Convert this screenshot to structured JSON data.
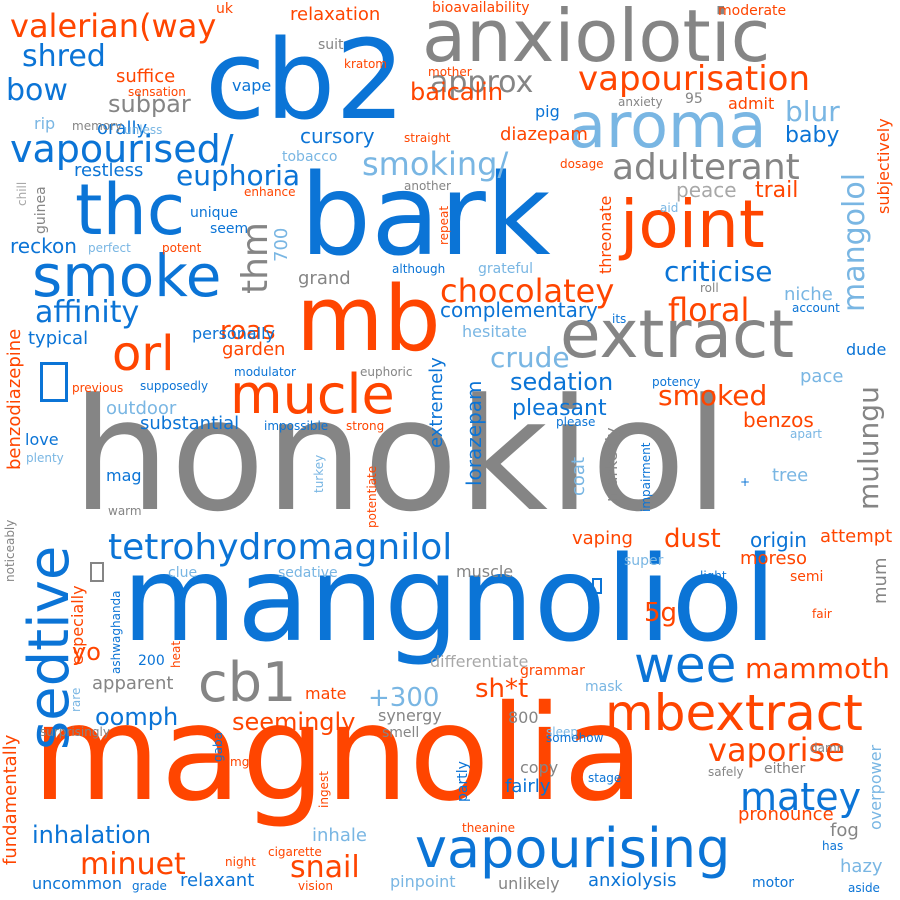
{
  "words": [
    {
      "id": "honokiol",
      "text": "honokiol",
      "color": "#858585"
    },
    {
      "id": "mangnoliol",
      "text": "mangnoliol",
      "color": "#0b74d6"
    },
    {
      "id": "magnolia",
      "text": "magnolia",
      "color": "#ff4500"
    },
    {
      "id": "bark",
      "text": "bark",
      "color": "#0b74d6"
    },
    {
      "id": "cb2",
      "text": "cb2",
      "color": "#0b74d6"
    },
    {
      "id": "anxiolotic",
      "text": "anxiolotic",
      "color": "#858585"
    },
    {
      "id": "mb",
      "text": "mb",
      "color": "#ff4500"
    },
    {
      "id": "extract",
      "text": "extract",
      "color": "#858585"
    },
    {
      "id": "joint",
      "text": "joint",
      "color": "#ff4500"
    },
    {
      "id": "thc",
      "text": "thc",
      "color": "#0b74d6"
    },
    {
      "id": "aroma",
      "text": "aroma",
      "color": "#79b6e3"
    },
    {
      "id": "smoke",
      "text": "smoke",
      "color": "#0b74d6"
    },
    {
      "id": "vapourising",
      "text": "vapourising",
      "color": "#0b74d6"
    },
    {
      "id": "mbextract",
      "text": "mbextract",
      "color": "#ff4500"
    },
    {
      "id": "sedtive",
      "text": "sedtive",
      "color": "#0b74d6"
    },
    {
      "id": "cb1",
      "text": "cb1",
      "color": "#858585"
    },
    {
      "id": "mucle",
      "text": "mucle",
      "color": "#ff4500"
    },
    {
      "id": "tetrohydromagnilol",
      "text": "tetrohydromagnilol",
      "color": "#0b74d6"
    },
    {
      "id": "wee",
      "text": "wee",
      "color": "#0b74d6"
    },
    {
      "id": "vapourisation",
      "text": "vapourisation",
      "color": "#ff4500"
    },
    {
      "id": "vapourised",
      "text": "vapourised/",
      "color": "#0b74d6"
    },
    {
      "id": "valerian",
      "text": "valerian(way",
      "color": "#ff4500"
    },
    {
      "id": "orl",
      "text": "orl",
      "color": "#ff4500"
    },
    {
      "id": "adulterant",
      "text": "adulterant",
      "color": "#858585"
    },
    {
      "id": "mangolol",
      "text": "mangolol",
      "color": "#79b6e3"
    },
    {
      "id": "mulungu",
      "text": "mulungu",
      "color": "#858585"
    },
    {
      "id": "chocolatey",
      "text": "chocolatey",
      "color": "#ff4500"
    },
    {
      "id": "thm",
      "text": "thm",
      "color": "#858585"
    },
    {
      "id": "matey",
      "text": "matey",
      "color": "#0b74d6"
    },
    {
      "id": "vaporise",
      "text": "vaporise",
      "color": "#ff4500"
    },
    {
      "id": "smoking",
      "text": "smoking/",
      "color": "#79b6e3"
    },
    {
      "id": "euphoria",
      "text": "euphoria",
      "color": "#0b74d6"
    },
    {
      "id": "criticise",
      "text": "criticise",
      "color": "#0b74d6"
    },
    {
      "id": "floral",
      "text": "floral",
      "color": "#ff4500"
    },
    {
      "id": "affinity",
      "text": "affinity",
      "color": "#0b74d6"
    },
    {
      "id": "mammoth",
      "text": "mammoth",
      "color": "#ff4500"
    },
    {
      "id": "minuet",
      "text": "minuet",
      "color": "#ff4500"
    },
    {
      "id": "inhalation",
      "text": "inhalation",
      "color": "#0b74d6"
    },
    {
      "id": "snail",
      "text": "snail",
      "color": "#ff4500"
    },
    {
      "id": "seemingly",
      "text": "seemingly",
      "color": "#ff4500"
    },
    {
      "id": "smoked",
      "text": "smoked",
      "color": "#ff4500"
    },
    {
      "id": "sedation",
      "text": "sedation",
      "color": "#0b74d6"
    },
    {
      "id": "crude",
      "text": "crude",
      "color": "#79b6e3"
    },
    {
      "id": "approx",
      "text": "approx",
      "color": "#858585"
    },
    {
      "id": "baicalin",
      "text": "baicalin",
      "color": "#ff4500"
    },
    {
      "id": "blur",
      "text": "blur",
      "color": "#79b6e3"
    },
    {
      "id": "shred",
      "text": "shred",
      "color": "#0b74d6"
    },
    {
      "id": "bow",
      "text": "bow",
      "color": "#0b74d6"
    },
    {
      "id": "subpar",
      "text": "subpar",
      "color": "#858585"
    },
    {
      "id": "roas",
      "text": "roas",
      "color": "#ff4500"
    },
    {
      "id": "dust",
      "text": "dust",
      "color": "#ff4500"
    },
    {
      "id": "5g",
      "text": "5g",
      "color": "#ff4500"
    },
    {
      "id": "sht",
      "text": "sh*t",
      "color": "#ff4500"
    },
    {
      "id": "plus300",
      "text": "+300",
      "color": "#79b6e3"
    },
    {
      "id": "oomph",
      "text": "oomph",
      "color": "#0b74d6"
    },
    {
      "id": "yo",
      "text": "yo",
      "color": "#ff4500"
    },
    {
      "id": "cursory",
      "text": "cursory",
      "color": "#0b74d6"
    },
    {
      "id": "pleasant",
      "text": "pleasant",
      "color": "#0b74d6"
    },
    {
      "id": "complementary",
      "text": "complementary",
      "color": "#0b74d6"
    },
    {
      "id": "origin",
      "text": "origin",
      "color": "#0b74d6"
    },
    {
      "id": "trail",
      "text": "trail",
      "color": "#ff4500"
    },
    {
      "id": "peace",
      "text": "peace",
      "color": "#a8a8a8"
    },
    {
      "id": "baby",
      "text": "baby",
      "color": "#0b74d6"
    },
    {
      "id": "reckon",
      "text": "reckon",
      "color": "#0b74d6"
    },
    {
      "id": "typical",
      "text": "typical",
      "color": "#0b74d6"
    },
    {
      "id": "garden",
      "text": "garden",
      "color": "#ff4500"
    },
    {
      "id": "grand",
      "text": "grand",
      "color": "#858585"
    },
    {
      "id": "substantial",
      "text": "substantial",
      "color": "#0b74d6"
    },
    {
      "id": "outdoor",
      "text": "outdoor",
      "color": "#79b6e3"
    },
    {
      "id": "benzos",
      "text": "benzos",
      "color": "#ff4500"
    },
    {
      "id": "apparent",
      "text": "apparent",
      "color": "#858585"
    },
    {
      "id": "differentiate",
      "text": "differentiate",
      "color": "#a8a8a8"
    },
    {
      "id": "muscle",
      "text": "muscle",
      "color": "#858585"
    },
    {
      "id": "mum",
      "text": "mum",
      "color": "#858585"
    },
    {
      "id": "moreso",
      "text": "moreso",
      "color": "#ff4500"
    },
    {
      "id": "attempt",
      "text": "attempt",
      "color": "#ff4500"
    },
    {
      "id": "vaping",
      "text": "vaping",
      "color": "#ff4500"
    },
    {
      "id": "relaxant",
      "text": "relaxant",
      "color": "#0b74d6"
    },
    {
      "id": "anxiolysis",
      "text": "anxiolysis",
      "color": "#0b74d6"
    },
    {
      "id": "uncommon",
      "text": "uncommon",
      "color": "#0b74d6"
    },
    {
      "id": "pinpoint",
      "text": "pinpoint",
      "color": "#79b6e3"
    },
    {
      "id": "unlikely",
      "text": "unlikely",
      "color": "#858585"
    },
    {
      "id": "inhale",
      "text": "inhale",
      "color": "#79b6e3"
    },
    {
      "id": "pronounce",
      "text": "pronounce",
      "color": "#ff4500"
    },
    {
      "id": "fog",
      "text": "fog",
      "color": "#858585"
    },
    {
      "id": "hazy",
      "text": "hazy",
      "color": "#79b6e3"
    },
    {
      "id": "fairly",
      "text": "fairly",
      "color": "#0b74d6"
    },
    {
      "id": "copy",
      "text": "copy",
      "color": "#858585"
    },
    {
      "id": "mate",
      "text": "mate",
      "color": "#ff4500"
    },
    {
      "id": "grammar",
      "text": "grammar",
      "color": "#ff4500"
    },
    {
      "id": "mask",
      "text": "mask",
      "color": "#79b6e3"
    },
    {
      "id": "synergy",
      "text": "synergy",
      "color": "#858585"
    },
    {
      "id": "n800",
      "text": "800",
      "color": "#858585"
    },
    {
      "id": "overpower",
      "text": "overpower",
      "color": "#79b6e3"
    },
    {
      "id": "fundamentally",
      "text": "fundamentally",
      "color": "#ff4500"
    },
    {
      "id": "benzodiazepine",
      "text": "benzodiazepine",
      "color": "#ff4500"
    },
    {
      "id": "extremely",
      "text": "extremely",
      "color": "#0b74d6"
    },
    {
      "id": "lorazepam",
      "text": "lorazepam",
      "color": "#0b74d6"
    },
    {
      "id": "coat",
      "text": "coat",
      "color": "#79b6e3"
    },
    {
      "id": "markedly",
      "text": "markedly",
      "color": "#858585"
    },
    {
      "id": "tree",
      "text": "tree",
      "color": "#79b6e3"
    },
    {
      "id": "pace",
      "text": "pace",
      "color": "#79b6e3"
    },
    {
      "id": "dude",
      "text": "dude",
      "color": "#0b74d6"
    },
    {
      "id": "niche",
      "text": "niche",
      "color": "#79b6e3"
    },
    {
      "id": "mag",
      "text": "mag",
      "color": "#0b74d6"
    },
    {
      "id": "love",
      "text": "love",
      "color": "#0b74d6"
    },
    {
      "id": "orally",
      "text": "orally",
      "color": "#0b74d6"
    },
    {
      "id": "suffice",
      "text": "suffice",
      "color": "#ff4500"
    },
    {
      "id": "vape",
      "text": "vape",
      "color": "#0b74d6"
    },
    {
      "id": "relaxation",
      "text": "relaxation",
      "color": "#ff4500"
    },
    {
      "id": "diazepam",
      "text": "diazepam",
      "color": "#ff4500"
    },
    {
      "id": "pig",
      "text": "pig",
      "color": "#0b74d6"
    },
    {
      "id": "n95",
      "text": "95",
      "color": "#858585"
    },
    {
      "id": "admit",
      "text": "admit",
      "color": "#ff4500"
    },
    {
      "id": "restless",
      "text": "restless",
      "color": "#0b74d6"
    },
    {
      "id": "n700",
      "text": "700",
      "color": "#79b6e3"
    },
    {
      "id": "personally",
      "text": "personally",
      "color": "#0b74d6"
    },
    {
      "id": "hesitate",
      "text": "hesitate",
      "color": "#79b6e3"
    },
    {
      "id": "especially",
      "text": "especially",
      "color": "#ff4500"
    },
    {
      "id": "subjectively",
      "text": "subjectively",
      "color": "#ff4500"
    },
    {
      "id": "threonate",
      "text": "threonate",
      "color": "#ff4500"
    },
    {
      "id": "moderate",
      "text": "moderate",
      "color": "#ff4500"
    },
    {
      "id": "bioavailability",
      "text": "bioavailability",
      "color": "#ff4500"
    },
    {
      "id": "uk",
      "text": "uk",
      "color": "#ff4500"
    },
    {
      "id": "suit",
      "text": "suit",
      "color": "#858585"
    },
    {
      "id": "kratom",
      "text": "kratom",
      "color": "#ff4500"
    },
    {
      "id": "mother",
      "text": "mother",
      "color": "#ff4500"
    },
    {
      "id": "anxiety",
      "text": "anxiety",
      "color": "#858585"
    },
    {
      "id": "sensation",
      "text": "sensation",
      "color": "#ff4500"
    },
    {
      "id": "rip",
      "text": "rip",
      "color": "#79b6e3"
    },
    {
      "id": "memory",
      "text": "memory",
      "color": "#858585"
    },
    {
      "id": "unless",
      "text": "unless",
      "color": "#79b6e3"
    },
    {
      "id": "straight",
      "text": "straight",
      "color": "#ff4500"
    },
    {
      "id": "dosage",
      "text": "dosage",
      "color": "#ff4500"
    },
    {
      "id": "tobacco",
      "text": "tobacco",
      "color": "#79b6e3"
    },
    {
      "id": "another",
      "text": "another",
      "color": "#858585"
    },
    {
      "id": "chill",
      "text": "chill",
      "color": "#a8a8a8"
    },
    {
      "id": "guinea",
      "text": "guinea",
      "color": "#858585"
    },
    {
      "id": "enhance",
      "text": "enhance",
      "color": "#ff4500"
    },
    {
      "id": "unique",
      "text": "unique",
      "color": "#0b74d6"
    },
    {
      "id": "seem",
      "text": "seem",
      "color": "#0b74d6"
    },
    {
      "id": "perfect",
      "text": "perfect",
      "color": "#79b6e3"
    },
    {
      "id": "potent",
      "text": "potent",
      "color": "#ff4500"
    },
    {
      "id": "repeat",
      "text": "repeat",
      "color": "#ff4500"
    },
    {
      "id": "although",
      "text": "although",
      "color": "#0b74d6"
    },
    {
      "id": "grateful",
      "text": "grateful",
      "color": "#79b6e3"
    },
    {
      "id": "aid",
      "text": "aid",
      "color": "#79b6e3"
    },
    {
      "id": "roll",
      "text": "roll",
      "color": "#858585"
    },
    {
      "id": "its",
      "text": "its",
      "color": "#0b74d6"
    },
    {
      "id": "account",
      "text": "account",
      "color": "#0b74d6"
    },
    {
      "id": "modulator",
      "text": "modulator",
      "color": "#0b74d6"
    },
    {
      "id": "euphoric",
      "text": "euphoric",
      "color": "#858585"
    },
    {
      "id": "previous",
      "text": "previous",
      "color": "#ff4500"
    },
    {
      "id": "supposedly",
      "text": "supposedly",
      "color": "#0b74d6"
    },
    {
      "id": "potency",
      "text": "potency",
      "color": "#0b74d6"
    },
    {
      "id": "impossible",
      "text": "impossible",
      "color": "#0b74d6"
    },
    {
      "id": "strong",
      "text": "strong",
      "color": "#ff4500"
    },
    {
      "id": "please",
      "text": "please",
      "color": "#0b74d6"
    },
    {
      "id": "apart",
      "text": "apart",
      "color": "#79b6e3"
    },
    {
      "id": "plenty",
      "text": "plenty",
      "color": "#79b6e3"
    },
    {
      "id": "potentiate",
      "text": "potentiate",
      "color": "#ff4500"
    },
    {
      "id": "impairment",
      "text": "impairment",
      "color": "#0b74d6"
    },
    {
      "id": "plus",
      "text": "+",
      "color": "#0b74d6"
    },
    {
      "id": "turkey",
      "text": "turkey",
      "color": "#79b6e3"
    },
    {
      "id": "warm",
      "text": "warm",
      "color": "#858585"
    },
    {
      "id": "noticeably",
      "text": "noticeably",
      "color": "#858585"
    },
    {
      "id": "clue",
      "text": "clue",
      "color": "#79b6e3"
    },
    {
      "id": "sedative",
      "text": "sedative",
      "color": "#79b6e3"
    },
    {
      "id": "super",
      "text": "super",
      "color": "#79b6e3"
    },
    {
      "id": "light",
      "text": "light",
      "color": "#0b74d6"
    },
    {
      "id": "semi",
      "text": "semi",
      "color": "#ff4500"
    },
    {
      "id": "fair",
      "text": "fair",
      "color": "#ff4500"
    },
    {
      "id": "ashwaghanda",
      "text": "ashwaghanda",
      "color": "#0b74d6"
    },
    {
      "id": "heat",
      "text": "heat",
      "color": "#ff4500"
    },
    {
      "id": "n200",
      "text": "200",
      "color": "#0b74d6"
    },
    {
      "id": "rare",
      "text": "rare",
      "color": "#79b6e3"
    },
    {
      "id": "surprisingly",
      "text": "surprisingly",
      "color": "#858585"
    },
    {
      "id": "gaba",
      "text": "gaba",
      "color": "#0b74d6"
    },
    {
      "id": "mg",
      "text": "mg",
      "color": "#ff4500"
    },
    {
      "id": "smell",
      "text": "smell",
      "color": "#858585"
    },
    {
      "id": "sleep",
      "text": "sleep",
      "color": "#79b6e3"
    },
    {
      "id": "somehow",
      "text": "somehow",
      "color": "#0b74d6"
    },
    {
      "id": "damn",
      "text": "damn",
      "color": "#858585"
    },
    {
      "id": "partly",
      "text": "partly",
      "color": "#0b74d6"
    },
    {
      "id": "stage",
      "text": "stage",
      "color": "#0b74d6"
    },
    {
      "id": "safely",
      "text": "safely",
      "color": "#858585"
    },
    {
      "id": "either",
      "text": "either",
      "color": "#858585"
    },
    {
      "id": "ingest",
      "text": "ingest",
      "color": "#ff4500"
    },
    {
      "id": "theanine",
      "text": "theanine",
      "color": "#ff4500"
    },
    {
      "id": "has",
      "text": "has",
      "color": "#0b74d6"
    },
    {
      "id": "cigarette",
      "text": "cigarette",
      "color": "#ff4500"
    },
    {
      "id": "night",
      "text": "night",
      "color": "#ff4500"
    },
    {
      "id": "vision",
      "text": "vision",
      "color": "#ff4500"
    },
    {
      "id": "grade",
      "text": "grade",
      "color": "#0b74d6"
    },
    {
      "id": "motor",
      "text": "motor",
      "color": "#0b74d6"
    },
    {
      "id": "aside",
      "text": "aside",
      "color": "#0b74d6"
    },
    {
      "id": "glyph1",
      "text": "",
      "color": "#0b74d6"
    },
    {
      "id": "glyph2",
      "text": "",
      "color": "#858585"
    },
    {
      "id": "glyph3",
      "text": "",
      "color": "#0b74d6"
    }
  ]
}
